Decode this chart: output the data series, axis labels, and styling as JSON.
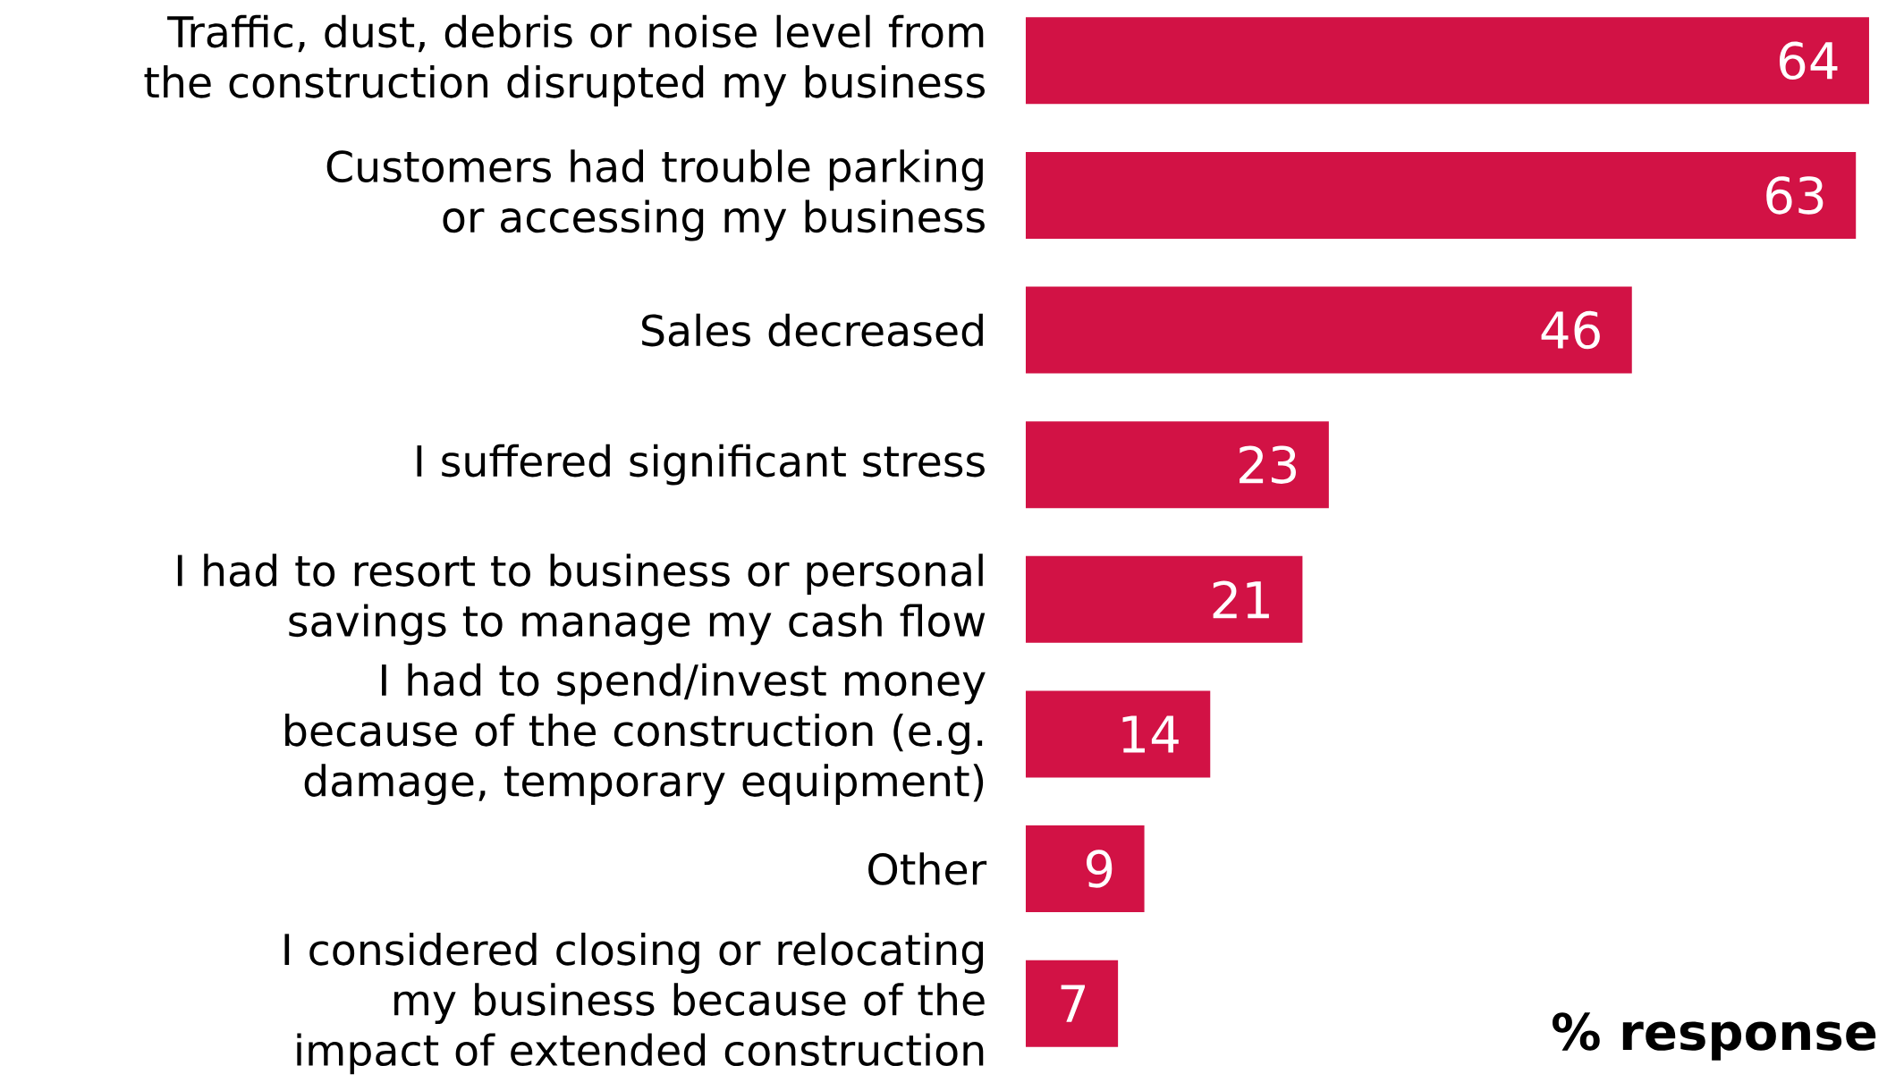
{
  "chart_data": {
    "type": "bar",
    "orientation": "horizontal",
    "xlabel": "% response",
    "data_labels": true,
    "color": "#d21245",
    "categories": [
      "Traffic, dust, debris or noise level from the construction disrupted my business",
      "Customers had trouble parking or accessing my business",
      "Sales decreased",
      "I suffered significant stress",
      "I had to resort to business or personal savings to manage my cash flow",
      "I had to spend/invest money because of the construction (e.g. damage, temporary equipment)",
      "Other",
      "I considered closing or relocating my business because of the impact of extended construction"
    ],
    "values": [
      64,
      63,
      46,
      23,
      21,
      14,
      9,
      7
    ]
  }
}
